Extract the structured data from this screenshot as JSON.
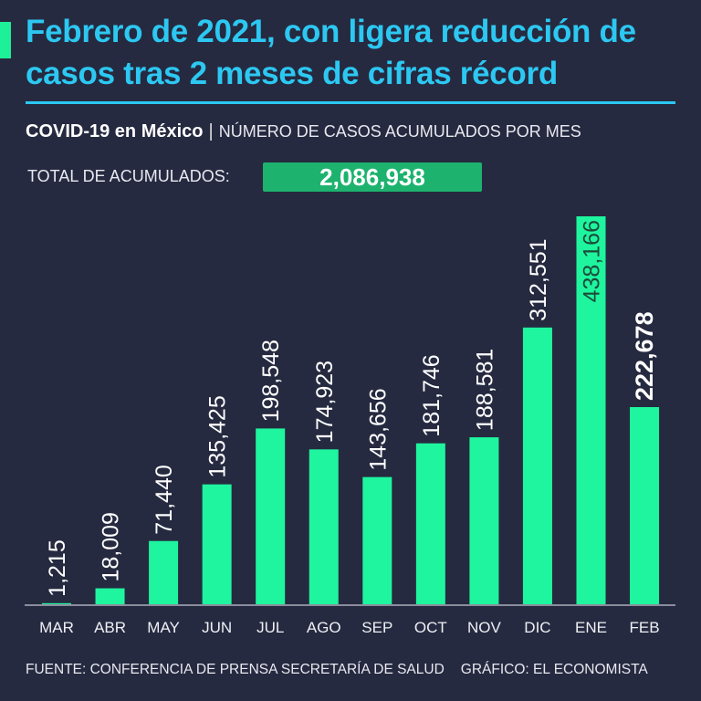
{
  "title": "Febrero de 2021, con ligera reducción de casos tras 2 meses de cifras récord",
  "subtitle_bold": "COVID-19 en México",
  "subtitle_sep": "|",
  "subtitle_light": "NÚMERO DE CASOS ACUMULADOS POR MES",
  "total_label": "TOTAL DE ACUMULADOS:",
  "total_value": "2,086,938",
  "source": "FUENTE: CONFERENCIA DE PRENSA SECRETARÍA DE SALUD",
  "credit": "GRÁFICO: EL ECONOMISTA",
  "colors": {
    "bar": "#1ef59e",
    "title": "#2cc8f2",
    "background": "#262a40"
  },
  "chart_data": {
    "type": "bar",
    "title": "NÚMERO DE CASOS ACUMULADOS POR MES",
    "categories": [
      "MAR",
      "ABR",
      "MAY",
      "JUN",
      "JUL",
      "AGO",
      "SEP",
      "OCT",
      "NOV",
      "DIC",
      "ENE",
      "FEB"
    ],
    "values": [
      1215,
      18009,
      71440,
      135425,
      198548,
      174923,
      143656,
      181746,
      188581,
      312551,
      438166,
      222678
    ],
    "labels": [
      "1,215",
      "18,009",
      "71,440",
      "135,425",
      "198,548",
      "174,923",
      "143,656",
      "181,746",
      "188,581",
      "312,551",
      "438,166",
      "222,678"
    ],
    "ylim": [
      0,
      438166
    ],
    "grid": false
  }
}
